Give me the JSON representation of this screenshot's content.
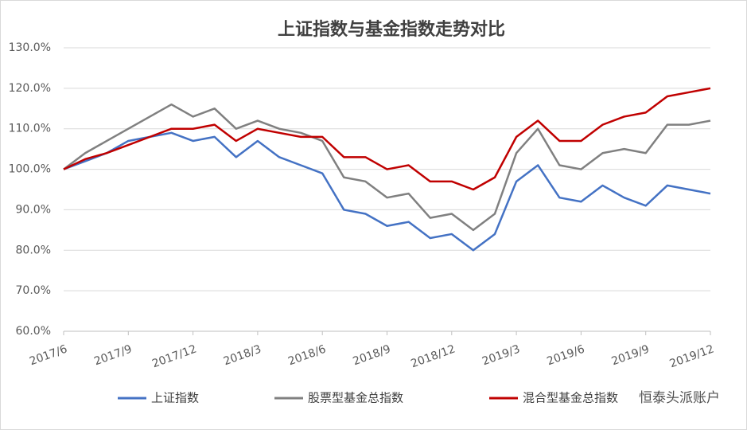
{
  "chart_data": {
    "type": "line",
    "title": "上证指数与基金指数走势对比",
    "x": [
      "2017/6",
      "2017/7",
      "2017/8",
      "2017/9",
      "2017/10",
      "2017/11",
      "2017/12",
      "2018/1",
      "2018/2",
      "2018/3",
      "2018/4",
      "2018/5",
      "2018/6",
      "2018/7",
      "2018/8",
      "2018/9",
      "2018/10",
      "2018/11",
      "2018/12",
      "2019/1",
      "2019/2",
      "2019/3",
      "2019/4",
      "2019/5",
      "2019/6",
      "2019/7",
      "2019/8",
      "2019/9",
      "2019/10",
      "2019/11",
      "2019/12"
    ],
    "xticks": [
      "2017/6",
      "2017/9",
      "2017/12",
      "2018/3",
      "2018/6",
      "2018/9",
      "2018/12",
      "2019/3",
      "2019/6",
      "2019/9",
      "2019/12"
    ],
    "ylim": [
      60,
      130
    ],
    "yticks": [
      {
        "value": 60,
        "label": "60.0%"
      },
      {
        "value": 70,
        "label": "70.0%"
      },
      {
        "value": 80,
        "label": "80.0%"
      },
      {
        "value": 90,
        "label": "90.0%"
      },
      {
        "value": 100,
        "label": "100.0%"
      },
      {
        "value": 110,
        "label": "110.0%"
      },
      {
        "value": 120,
        "label": "120.0%"
      },
      {
        "value": 130,
        "label": "130.0%"
      }
    ],
    "grid": true,
    "legend": "bottom",
    "series": [
      {
        "name": "上证指数",
        "color": "#4472c4",
        "values": [
          100,
          102,
          104,
          107,
          108,
          109,
          107,
          108,
          103,
          107,
          103,
          101,
          99,
          90,
          89,
          86,
          87,
          83,
          84,
          80,
          84,
          97,
          101,
          93,
          92,
          96,
          93,
          91,
          96,
          95,
          94
        ]
      },
      {
        "name": "股票型基金总指数",
        "color": "#808080",
        "values": [
          100,
          104,
          107,
          110,
          113,
          116,
          113,
          115,
          110,
          112,
          110,
          109,
          107,
          98,
          97,
          93,
          94,
          88,
          89,
          85,
          89,
          104,
          110,
          101,
          100,
          104,
          105,
          104,
          111,
          111,
          112
        ]
      },
      {
        "name": "混合型基金总指数",
        "color": "#c00000",
        "values": [
          100,
          102.5,
          104,
          106,
          108,
          110,
          110,
          111,
          107,
          110,
          109,
          108,
          108,
          103,
          103,
          100,
          101,
          97,
          97,
          95,
          98,
          108,
          112,
          107,
          107,
          111,
          113,
          114,
          118,
          119,
          120
        ]
      }
    ],
    "watermark": "恒泰头派账户"
  }
}
